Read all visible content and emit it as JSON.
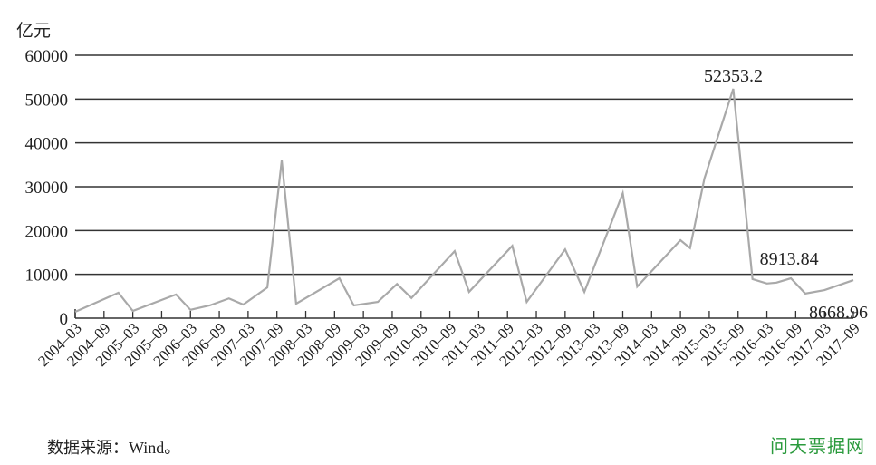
{
  "chart_data": {
    "type": "line",
    "ylabel": "亿元",
    "ylim": [
      0,
      60000
    ],
    "yticks": [
      "0",
      "10000",
      "20000",
      "30000",
      "40000",
      "50000",
      "60000"
    ],
    "grid": true,
    "xlim": [
      "2004-03",
      "2017-09"
    ],
    "xticks": [
      "2004–03",
      "2004–09",
      "2005–03",
      "2005–09",
      "2006–03",
      "2006–09",
      "2007–03",
      "2007–09",
      "2008–03",
      "2008–09",
      "2009–03",
      "2009–09",
      "2010–03",
      "2010–09",
      "2011–03",
      "2011–09",
      "2012–03",
      "2012–09",
      "2013–03",
      "2013–09",
      "2014–03",
      "2014–09",
      "2015–03",
      "2015–09",
      "2016–03",
      "2016–09",
      "2017–03",
      "2017–09"
    ],
    "series": [
      {
        "color": "#a9a9a9",
        "points": [
          [
            "2004-03",
            1450
          ],
          [
            "2004-12",
            5800
          ],
          [
            "2005-03",
            1650
          ],
          [
            "2005-12",
            5400
          ],
          [
            "2006-03",
            1900
          ],
          [
            "2006-07",
            2900
          ],
          [
            "2006-11",
            4500
          ],
          [
            "2007-02",
            3100
          ],
          [
            "2007-07",
            7000
          ],
          [
            "2007-10",
            36000
          ],
          [
            "2008-01",
            3300
          ],
          [
            "2008-10",
            9100
          ],
          [
            "2009-01",
            2900
          ],
          [
            "2009-06",
            3700
          ],
          [
            "2009-10",
            7800
          ],
          [
            "2010-01",
            4600
          ],
          [
            "2010-10",
            15300
          ],
          [
            "2011-01",
            6000
          ],
          [
            "2011-10",
            16500
          ],
          [
            "2012-01",
            3700
          ],
          [
            "2012-09",
            15700
          ],
          [
            "2013-01",
            6000
          ],
          [
            "2013-09",
            28500
          ],
          [
            "2013-12",
            7200
          ],
          [
            "2014-09",
            17800
          ],
          [
            "2014-11",
            16000
          ],
          [
            "2015-02",
            31900
          ],
          [
            "2015-08",
            52353.2
          ],
          [
            "2015-12",
            8913.84
          ],
          [
            "2016-03",
            7900
          ],
          [
            "2016-05",
            8100
          ],
          [
            "2016-08",
            9100
          ],
          [
            "2016-11",
            5600
          ],
          [
            "2017-03",
            6400
          ],
          [
            "2017-09",
            8668.96
          ]
        ]
      }
    ],
    "annotations": [
      {
        "text": "52353.2",
        "x": "2015-08",
        "y": 52353.2
      },
      {
        "text": "8913.84",
        "x": "2015-12",
        "y": 8913.84
      },
      {
        "text": "8668.96",
        "x": "2017-09",
        "y": 8668.96
      }
    ]
  },
  "footer": {
    "source": "数据来源：Wind。"
  },
  "watermark": "问天票据网"
}
